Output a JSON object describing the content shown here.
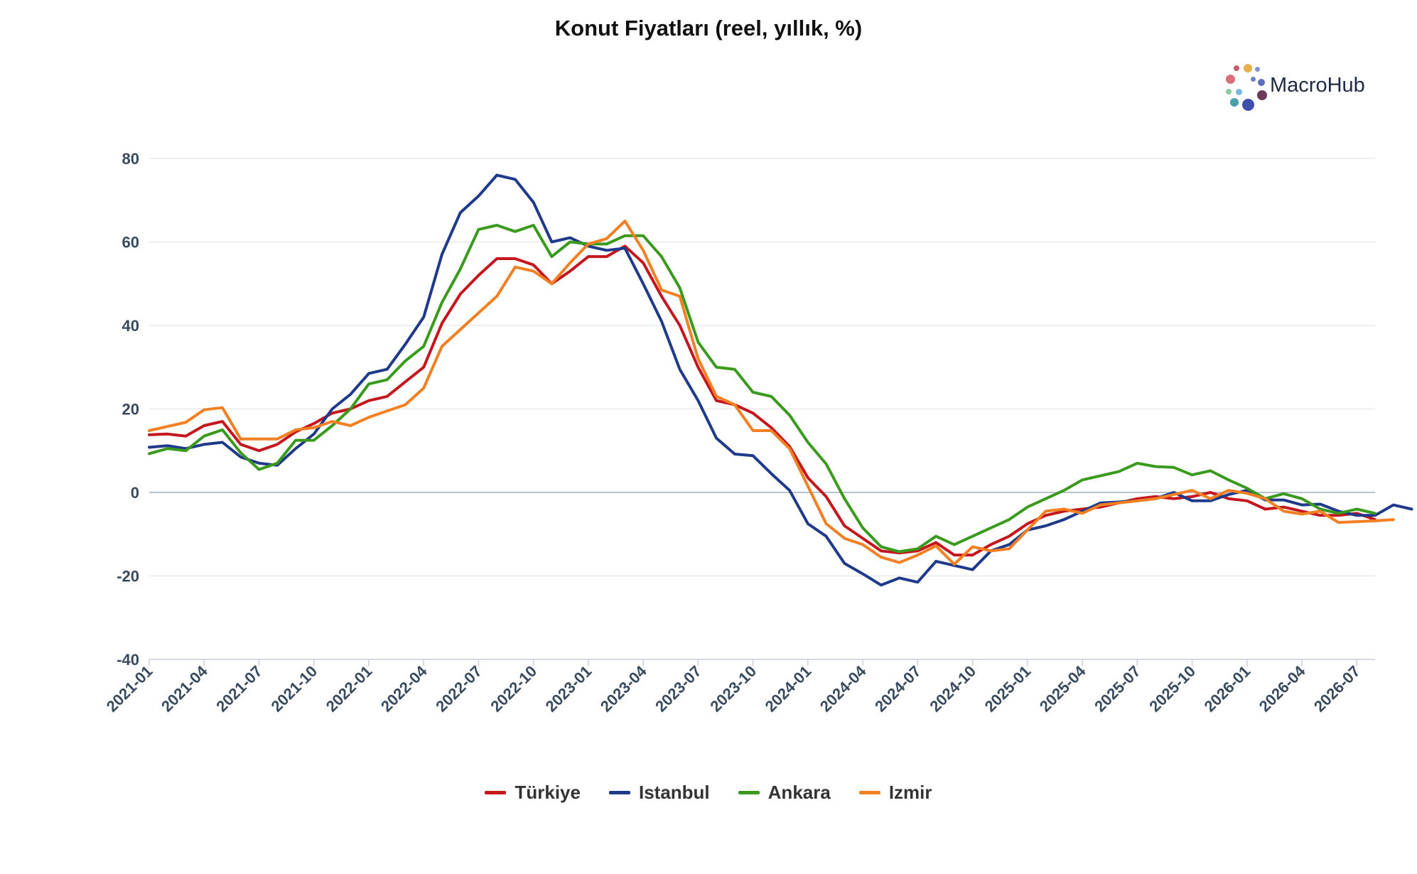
{
  "chart_data": {
    "type": "line",
    "title": "Konut Fiyatları (reel, yıllık, %)",
    "xlabel": "",
    "ylabel": "",
    "ylim": [
      -40,
      80
    ],
    "yticks": [
      80,
      60,
      40,
      20,
      0,
      -20,
      -40
    ],
    "xtick_labels": [
      "2021-01",
      "2021-04",
      "2021-07",
      "2021-10",
      "2022-01",
      "2022-04",
      "2022-07",
      "2022-10",
      "2023-01",
      "2023-04",
      "2023-07",
      "2023-10",
      "2024-01",
      "2024-04",
      "2024-07",
      "2024-10",
      "2025-01",
      "2025-04",
      "2025-07",
      "2025-10",
      "2026-01",
      "2026-04",
      "2026-07"
    ],
    "x_start": "2021-01",
    "x_end": "2026-08",
    "grid": true,
    "legend_position": "bottom-center",
    "series": [
      {
        "name": "Türkiye",
        "color": "#c4161c",
        "values": [
          13.8,
          14,
          13.5,
          16,
          17,
          11.5,
          10,
          11.5,
          14.5,
          16.5,
          19,
          20,
          22,
          23,
          26.5,
          30,
          40.5,
          47.5,
          52,
          56,
          56,
          54.5,
          50,
          53,
          56.5,
          56.5,
          59,
          55,
          47,
          40,
          30,
          22,
          21,
          19,
          15.5,
          11,
          3.5,
          -1,
          -8,
          -11,
          -14,
          -14.5,
          -14,
          -12,
          -15,
          -15,
          -12.5,
          -10.5,
          -7.5,
          -5.5,
          -4.5,
          -4,
          -3.5,
          -2.5,
          -1.5,
          -1,
          -1.5,
          -1,
          0,
          -1.5,
          -2,
          -4,
          -3.5,
          -4.5,
          -5.5,
          -5.5,
          -5,
          -6.5
        ]
      },
      {
        "name": "Istanbul",
        "color": "#1f3a8a",
        "values": [
          10.8,
          11.2,
          10.5,
          11.5,
          12,
          8.5,
          7,
          6.5,
          10.5,
          14,
          20,
          23.5,
          28.5,
          29.5,
          35.5,
          42,
          57,
          67,
          71,
          76,
          75,
          69.5,
          60,
          61,
          59,
          58,
          58.5,
          50,
          41,
          29.5,
          22,
          13,
          9.2,
          8.8,
          4.5,
          0.5,
          -7.5,
          -10.5,
          -17,
          -19.5,
          -22.2,
          -20.5,
          -21.5,
          -16.5,
          -17.5,
          -18.5,
          -14,
          -12.5,
          -9,
          -8,
          -6.5,
          -4.5,
          -2.5,
          -2.3,
          -2,
          -1.5,
          0,
          -2,
          -2,
          -0.5,
          0.5,
          -1.8,
          -1.8,
          -3,
          -2.8,
          -4.5,
          -5.5,
          -5.5,
          -3,
          -4
        ]
      },
      {
        "name": "Ankara",
        "color": "#3a9a1e",
        "values": [
          9.3,
          10.5,
          10,
          13.5,
          15,
          9.5,
          5.5,
          7,
          12.5,
          12.5,
          16,
          20,
          26,
          27,
          31.5,
          35,
          45.5,
          53.5,
          63,
          64,
          62.5,
          64,
          56.5,
          60,
          59.5,
          59.5,
          61.5,
          61.5,
          56.5,
          49,
          36,
          30,
          29.5,
          24,
          23,
          18.5,
          12,
          6.8,
          -1.5,
          -8.5,
          -13,
          -14.2,
          -13.5,
          -10.5,
          -12.5,
          -10.5,
          -8.5,
          -6.5,
          -3.5,
          -1.5,
          0.5,
          3,
          4,
          5,
          7,
          6.2,
          6,
          4.2,
          5.2,
          3,
          1,
          -1.5,
          -0.3,
          -1.5,
          -4,
          -5,
          -4,
          -5
        ]
      },
      {
        "name": "Izmir",
        "color": "#f28022",
        "values": [
          14.8,
          15.8,
          16.8,
          19.8,
          20.3,
          12.8,
          12.8,
          12.8,
          15,
          15.5,
          17,
          16,
          18,
          19.5,
          21,
          25,
          35,
          39,
          43,
          47,
          54,
          53,
          50,
          55,
          59.5,
          60.8,
          65,
          58,
          48.5,
          47,
          32,
          23,
          21,
          14.8,
          14.8,
          10.5,
          1.5,
          -7.5,
          -11,
          -12.5,
          -15.5,
          -16.8,
          -15,
          -12.8,
          -17.2,
          -13,
          -14,
          -13.5,
          -9,
          -4.5,
          -4,
          -5,
          -3,
          -2.5,
          -2,
          -1.5,
          -0.5,
          0.5,
          -1.5,
          0.5,
          -0.2,
          -1.5,
          -4.5,
          -5.2,
          -4.5,
          -7.2,
          -7,
          -6.8,
          -6.5
        ]
      }
    ]
  },
  "logo": {
    "text": "MacroHub",
    "dot_colors": [
      "#c75b6b",
      "#e8b04a",
      "#8a8fd0",
      "#d96f7a",
      "#6b7fc4",
      "#5a6fc0",
      "#8cc9a0",
      "#7ab8d8",
      "#49a0a8",
      "#6e3a5a",
      "#3f4fb0"
    ]
  }
}
